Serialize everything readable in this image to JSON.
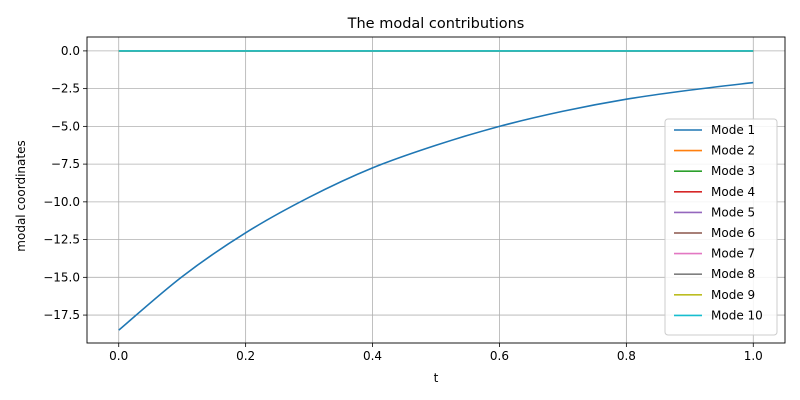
{
  "chart_data": {
    "type": "line",
    "title": "The modal contributions",
    "xlabel": "t",
    "ylabel": "modal coordinates",
    "xlim": [
      -0.05,
      1.05
    ],
    "ylim": [
      -19.35,
      0.92
    ],
    "xticks": [
      0.0,
      0.2,
      0.4,
      0.6,
      0.8,
      1.0
    ],
    "xtick_labels": [
      "0.0",
      "0.2",
      "0.4",
      "0.6",
      "0.8",
      "1.0"
    ],
    "yticks": [
      0.0,
      -2.5,
      -5.0,
      -7.5,
      -10.0,
      -12.5,
      -15.0,
      -17.5
    ],
    "ytick_labels": [
      "0.0",
      "−2.5",
      "−5.0",
      "−7.5",
      "−10.0",
      "−12.5",
      "−15.0",
      "−17.5"
    ],
    "grid": true,
    "legend_position": "lower-right",
    "series": [
      {
        "name": "Mode 1",
        "color": "#1f77b4",
        "x": [
          0.0,
          0.1,
          0.2,
          0.3,
          0.4,
          0.5,
          0.6,
          0.7,
          0.8,
          0.9,
          1.0
        ],
        "y": [
          -18.5,
          -14.95,
          -12.05,
          -9.7,
          -7.75,
          -6.25,
          -5.0,
          -4.0,
          -3.2,
          -2.6,
          -2.1
        ]
      },
      {
        "name": "Mode 2",
        "color": "#ff7f0e",
        "x": [
          0.0,
          1.0
        ],
        "y": [
          0.0,
          0.0
        ]
      },
      {
        "name": "Mode 3",
        "color": "#2ca02c",
        "x": [
          0.0,
          1.0
        ],
        "y": [
          0.0,
          0.0
        ]
      },
      {
        "name": "Mode 4",
        "color": "#d62728",
        "x": [
          0.0,
          1.0
        ],
        "y": [
          0.0,
          0.0
        ]
      },
      {
        "name": "Mode 5",
        "color": "#9467bd",
        "x": [
          0.0,
          1.0
        ],
        "y": [
          0.0,
          0.0
        ]
      },
      {
        "name": "Mode 6",
        "color": "#8c564b",
        "x": [
          0.0,
          1.0
        ],
        "y": [
          0.0,
          0.0
        ]
      },
      {
        "name": "Mode 7",
        "color": "#e377c2",
        "x": [
          0.0,
          1.0
        ],
        "y": [
          0.0,
          0.0
        ]
      },
      {
        "name": "Mode 8",
        "color": "#7f7f7f",
        "x": [
          0.0,
          1.0
        ],
        "y": [
          0.0,
          0.0
        ]
      },
      {
        "name": "Mode 9",
        "color": "#bcbd22",
        "x": [
          0.0,
          1.0
        ],
        "y": [
          0.0,
          0.0
        ]
      },
      {
        "name": "Mode 10",
        "color": "#17becf",
        "x": [
          0.0,
          1.0
        ],
        "y": [
          0.0,
          0.0
        ]
      }
    ]
  }
}
